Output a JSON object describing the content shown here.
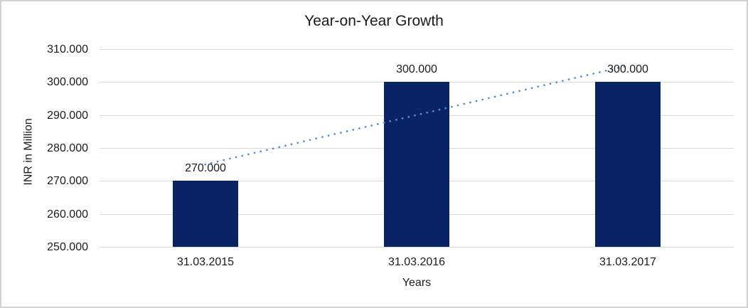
{
  "chart_data": {
    "type": "bar",
    "title": "Year-on-Year Growth",
    "xlabel": "Years",
    "ylabel": "INR in Million",
    "categories": [
      "31.03.2015",
      "31.03.2016",
      "31.03.2017"
    ],
    "values": [
      270,
      300,
      300
    ],
    "value_labels": [
      "270.000",
      "300.000",
      "300.000"
    ],
    "ylim": [
      250,
      310
    ],
    "yticks": [
      250,
      260,
      270,
      280,
      290,
      300,
      310
    ],
    "ytick_labels": [
      "250.000",
      "260.000",
      "270.000",
      "280.000",
      "290.000",
      "300.000",
      "310.000"
    ],
    "grid": true,
    "legend_position": "none",
    "bar_color": "#0a2364",
    "gridline_color": "#d9d9d9",
    "text_color": "#1a1a1a",
    "frame_color": "#d2d2d2",
    "trendline": {
      "type": "linear",
      "style": "dotted",
      "color": "#4f90d5",
      "endpoint_values": [
        275,
        305
      ]
    }
  }
}
